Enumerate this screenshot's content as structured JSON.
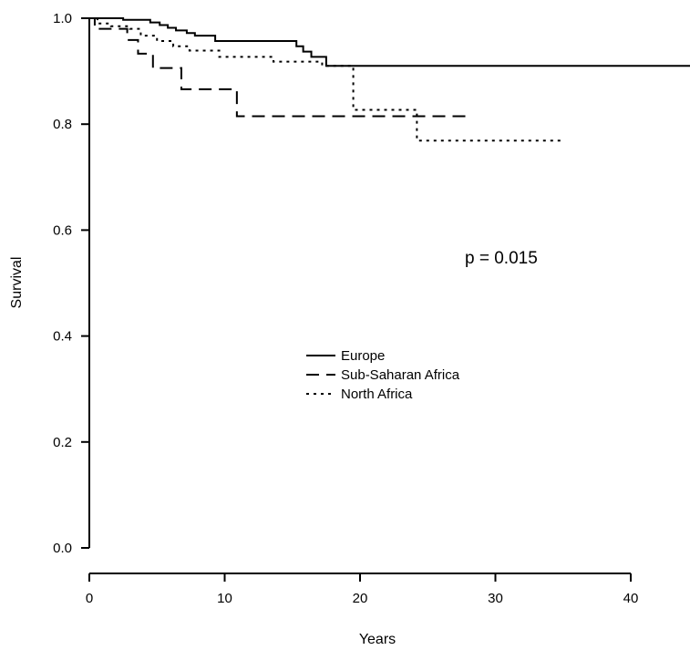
{
  "chart_data": {
    "type": "line",
    "title": "",
    "xlabel": "Years",
    "ylabel": "Survival",
    "xlim": [
      0,
      45
    ],
    "ylim": [
      0,
      1.0
    ],
    "x_ticks": [
      0,
      10,
      20,
      30,
      40
    ],
    "y_ticks": [
      0.0,
      0.2,
      0.4,
      0.6,
      0.8,
      1.0
    ],
    "x_tick_labels": [
      "0",
      "10",
      "20",
      "30",
      "40"
    ],
    "y_tick_labels": [
      "0.0",
      "0.2",
      "0.4",
      "0.6",
      "0.8",
      "1.0"
    ],
    "grid": false,
    "legend_position": "center",
    "annotation": "p = 0.015",
    "series": [
      {
        "name": "Europe",
        "style": "solid",
        "points": [
          [
            0,
            1.0
          ],
          [
            2.5,
            0.997
          ],
          [
            4.5,
            0.992
          ],
          [
            5.2,
            0.987
          ],
          [
            5.8,
            0.982
          ],
          [
            6.4,
            0.977
          ],
          [
            7.2,
            0.972
          ],
          [
            7.8,
            0.967
          ],
          [
            9.3,
            0.957
          ],
          [
            15.3,
            0.947
          ],
          [
            15.8,
            0.937
          ],
          [
            16.4,
            0.927
          ],
          [
            17.5,
            0.91
          ],
          [
            45,
            0.91
          ]
        ]
      },
      {
        "name": "Sub-Saharan Africa",
        "style": "dashed",
        "points": [
          [
            0,
            1.0
          ],
          [
            0.4,
            0.98
          ],
          [
            1.8,
            0.98
          ],
          [
            2.8,
            0.959
          ],
          [
            3.6,
            0.933
          ],
          [
            4.7,
            0.906
          ],
          [
            6.8,
            0.866
          ],
          [
            10.9,
            0.815
          ],
          [
            28.2,
            0.815
          ]
        ]
      },
      {
        "name": "North Africa",
        "style": "dotted",
        "points": [
          [
            0,
            1.0
          ],
          [
            0.6,
            0.99
          ],
          [
            1.6,
            0.985
          ],
          [
            3.0,
            0.98
          ],
          [
            3.8,
            0.967
          ],
          [
            5.0,
            0.957
          ],
          [
            6.2,
            0.947
          ],
          [
            7.4,
            0.939
          ],
          [
            9.6,
            0.927
          ],
          [
            13.6,
            0.918
          ],
          [
            17.2,
            0.91
          ],
          [
            18.8,
            0.91
          ],
          [
            19.5,
            0.827
          ],
          [
            24.0,
            0.827
          ],
          [
            24.2,
            0.769
          ],
          [
            34.8,
            0.769
          ]
        ]
      }
    ]
  }
}
